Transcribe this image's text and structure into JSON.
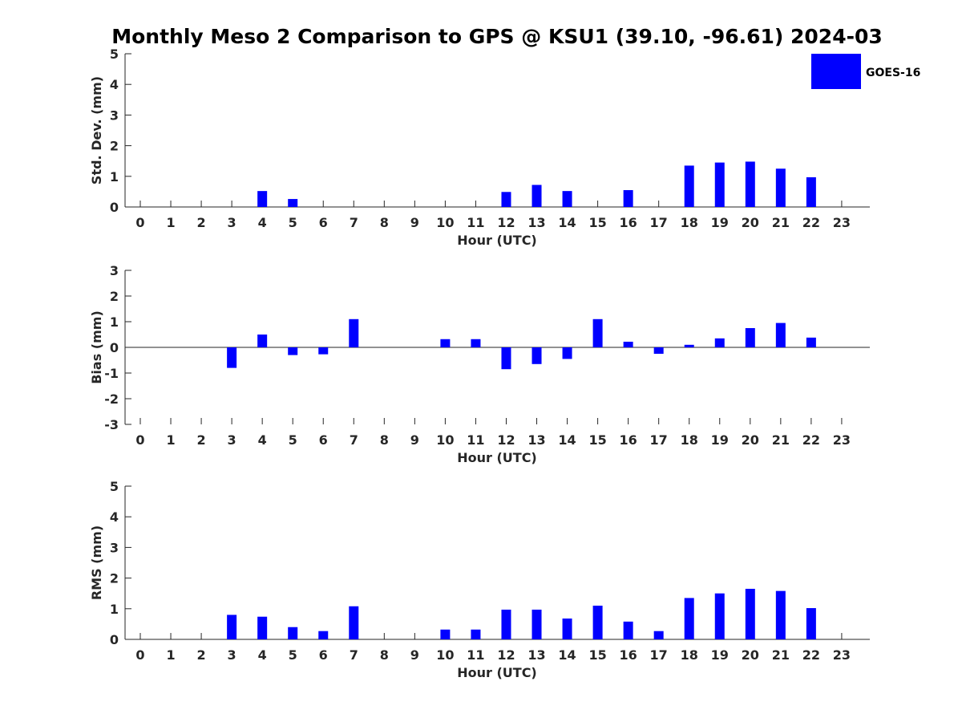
{
  "title": "Monthly Meso 2 Comparison to GPS @ KSU1 (39.10, -96.61) 2024-03",
  "colors": {
    "bar": "#0000ff",
    "axis": "#262626",
    "background": "#ffffff"
  },
  "legend": {
    "label": "GOES-16",
    "placement": "top-right"
  },
  "chart_data": [
    {
      "type": "bar",
      "title": "Monthly Meso 2 Comparison to GPS @ KSU1 (39.10, -96.61) 2024-03",
      "xlabel": "Hour (UTC)",
      "ylabel": "Std. Dev. (mm)",
      "categories": [
        "0",
        "1",
        "2",
        "3",
        "4",
        "5",
        "6",
        "7",
        "8",
        "9",
        "10",
        "11",
        "12",
        "13",
        "14",
        "15",
        "16",
        "17",
        "18",
        "19",
        "20",
        "21",
        "22",
        "23"
      ],
      "ylim": [
        0,
        5
      ],
      "yticks": [
        0,
        1,
        2,
        3,
        4,
        5
      ],
      "grid": false,
      "series": [
        {
          "name": "GOES-16",
          "values": [
            null,
            null,
            null,
            0,
            0.52,
            0.26,
            0,
            0,
            null,
            null,
            0,
            0,
            0.49,
            0.72,
            0.52,
            0,
            0.55,
            0,
            1.35,
            1.45,
            1.48,
            1.25,
            0.97,
            null
          ]
        }
      ]
    },
    {
      "type": "bar",
      "xlabel": "Hour (UTC)",
      "ylabel": "Bias (mm)",
      "categories": [
        "0",
        "1",
        "2",
        "3",
        "4",
        "5",
        "6",
        "7",
        "8",
        "9",
        "10",
        "11",
        "12",
        "13",
        "14",
        "15",
        "16",
        "17",
        "18",
        "19",
        "20",
        "21",
        "22",
        "23"
      ],
      "ylim": [
        -3,
        3
      ],
      "yticks": [
        -3,
        -2,
        -1,
        0,
        1,
        2,
        3
      ],
      "grid": false,
      "series": [
        {
          "name": "GOES-16",
          "values": [
            null,
            null,
            null,
            -0.8,
            0.5,
            -0.3,
            -0.27,
            1.1,
            null,
            null,
            0.32,
            0.32,
            -0.85,
            -0.65,
            -0.45,
            1.1,
            0.22,
            -0.25,
            0.1,
            0.35,
            0.75,
            0.95,
            0.38,
            null
          ]
        }
      ]
    },
    {
      "type": "bar",
      "xlabel": "Hour (UTC)",
      "ylabel": "RMS (mm)",
      "categories": [
        "0",
        "1",
        "2",
        "3",
        "4",
        "5",
        "6",
        "7",
        "8",
        "9",
        "10",
        "11",
        "12",
        "13",
        "14",
        "15",
        "16",
        "17",
        "18",
        "19",
        "20",
        "21",
        "22",
        "23"
      ],
      "ylim": [
        0,
        5
      ],
      "yticks": [
        0,
        1,
        2,
        3,
        4,
        5
      ],
      "grid": false,
      "series": [
        {
          "name": "GOES-16",
          "values": [
            null,
            null,
            null,
            0.8,
            0.74,
            0.4,
            0.27,
            1.08,
            null,
            null,
            0.32,
            0.32,
            0.97,
            0.97,
            0.68,
            1.1,
            0.58,
            0.27,
            1.35,
            1.5,
            1.65,
            1.58,
            1.02,
            null
          ]
        }
      ]
    }
  ]
}
